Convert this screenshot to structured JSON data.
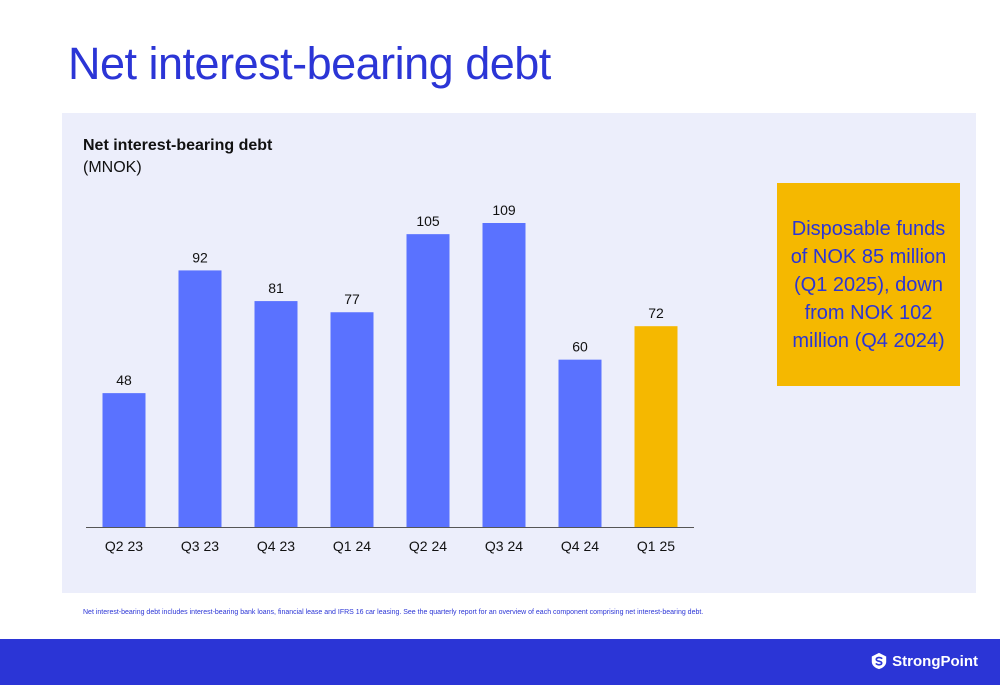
{
  "page": {
    "title": "Net interest-bearing debt",
    "footnote": "Net interest-bearing debt includes interest-bearing bank loans, financial lease and IFRS 16 car leasing. See the quarterly report for an overview of each component comprising net interest-bearing debt.",
    "logo_text": "StrongPoint"
  },
  "callout": {
    "text": "Disposable funds of NOK 85 million (Q1 2025), down from NOK 102 million (Q4 2024)"
  },
  "colors": {
    "brand_blue": "#2b35d6",
    "bar_blue": "#5a72ff",
    "highlight": "#f5b800",
    "panel_bg": "#eceefb"
  },
  "chart_data": {
    "type": "bar",
    "title": "Net interest-bearing debt",
    "subtitle": "(MNOK)",
    "categories": [
      "Q2 23",
      "Q3 23",
      "Q4 23",
      "Q1 24",
      "Q2 24",
      "Q3 24",
      "Q4 24",
      "Q1 25"
    ],
    "values": [
      48,
      92,
      81,
      77,
      105,
      109,
      60,
      72
    ],
    "highlight_index": 7,
    "data_labels": true,
    "ylim": [
      0,
      109
    ],
    "grid": false,
    "legend": "none"
  }
}
